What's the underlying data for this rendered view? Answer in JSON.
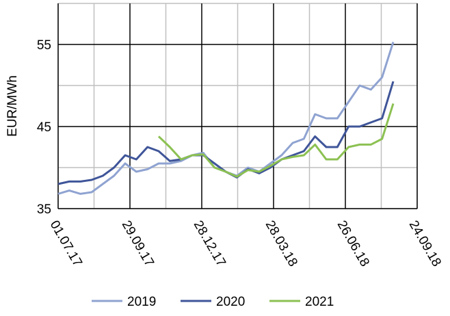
{
  "chart_data": {
    "type": "line",
    "y_label": "EUR/MWh",
    "x": [
      "2017-07-01",
      "2017-07-15",
      "2017-07-29",
      "2017-08-12",
      "2017-08-26",
      "2017-09-09",
      "2017-09-23",
      "2017-10-07",
      "2017-10-21",
      "2017-11-04",
      "2017-11-18",
      "2017-12-02",
      "2017-12-16",
      "2017-12-30",
      "2018-01-13",
      "2018-01-27",
      "2018-02-10",
      "2018-02-24",
      "2018-03-10",
      "2018-03-24",
      "2018-04-07",
      "2018-04-21",
      "2018-05-05",
      "2018-05-19",
      "2018-06-02",
      "2018-06-16",
      "2018-06-30",
      "2018-07-14",
      "2018-07-28",
      "2018-08-11",
      "2018-08-25"
    ],
    "series": [
      {
        "name": "2019",
        "color": "#8fa3d1",
        "values": [
          36.8,
          37.2,
          36.8,
          37.0,
          38.0,
          39.0,
          40.5,
          39.5,
          39.8,
          40.5,
          40.5,
          40.8,
          41.5,
          41.8,
          40.0,
          39.5,
          39.0,
          40.0,
          39.5,
          40.5,
          41.5,
          43.0,
          43.5,
          46.5,
          46.0,
          46.0,
          48.0,
          50.0,
          49.5,
          51.0,
          55.3
        ]
      },
      {
        "name": "2020",
        "color": "#3f5599",
        "values": [
          38.0,
          38.3,
          38.3,
          38.5,
          39.0,
          40.0,
          41.5,
          41.0,
          42.5,
          42.0,
          40.8,
          41.0,
          41.5,
          41.5,
          40.5,
          39.5,
          38.8,
          39.8,
          39.3,
          40.0,
          41.0,
          41.5,
          42.0,
          43.8,
          42.5,
          42.5,
          45.0,
          45.0,
          45.5,
          46.0,
          50.5
        ]
      },
      {
        "name": "2021",
        "color": "#8cc152",
        "values": [
          null,
          null,
          null,
          null,
          null,
          null,
          null,
          null,
          null,
          43.8,
          42.5,
          41.0,
          41.5,
          41.6,
          40.0,
          39.5,
          38.9,
          39.7,
          39.5,
          40.2,
          41.0,
          41.3,
          41.5,
          42.8,
          41.0,
          41.0,
          42.5,
          42.8,
          42.8,
          43.5,
          47.8
        ]
      }
    ],
    "xlim": [
      "2017-07-01",
      "2018-09-24"
    ],
    "xticks": [
      {
        "value": "2017-07-01",
        "label": "01.07.17"
      },
      {
        "value": "2017-09-29",
        "label": "29.09.17"
      },
      {
        "value": "2017-12-28",
        "label": "28.12.17"
      },
      {
        "value": "2018-03-28",
        "label": "28.03.18"
      },
      {
        "value": "2018-06-26",
        "label": "26.06.18"
      },
      {
        "value": "2018-09-24",
        "label": "24.09.18"
      }
    ],
    "ylim": [
      35,
      60
    ],
    "yticks": [
      35,
      45,
      55
    ],
    "grid": true,
    "legend": "bottom"
  }
}
